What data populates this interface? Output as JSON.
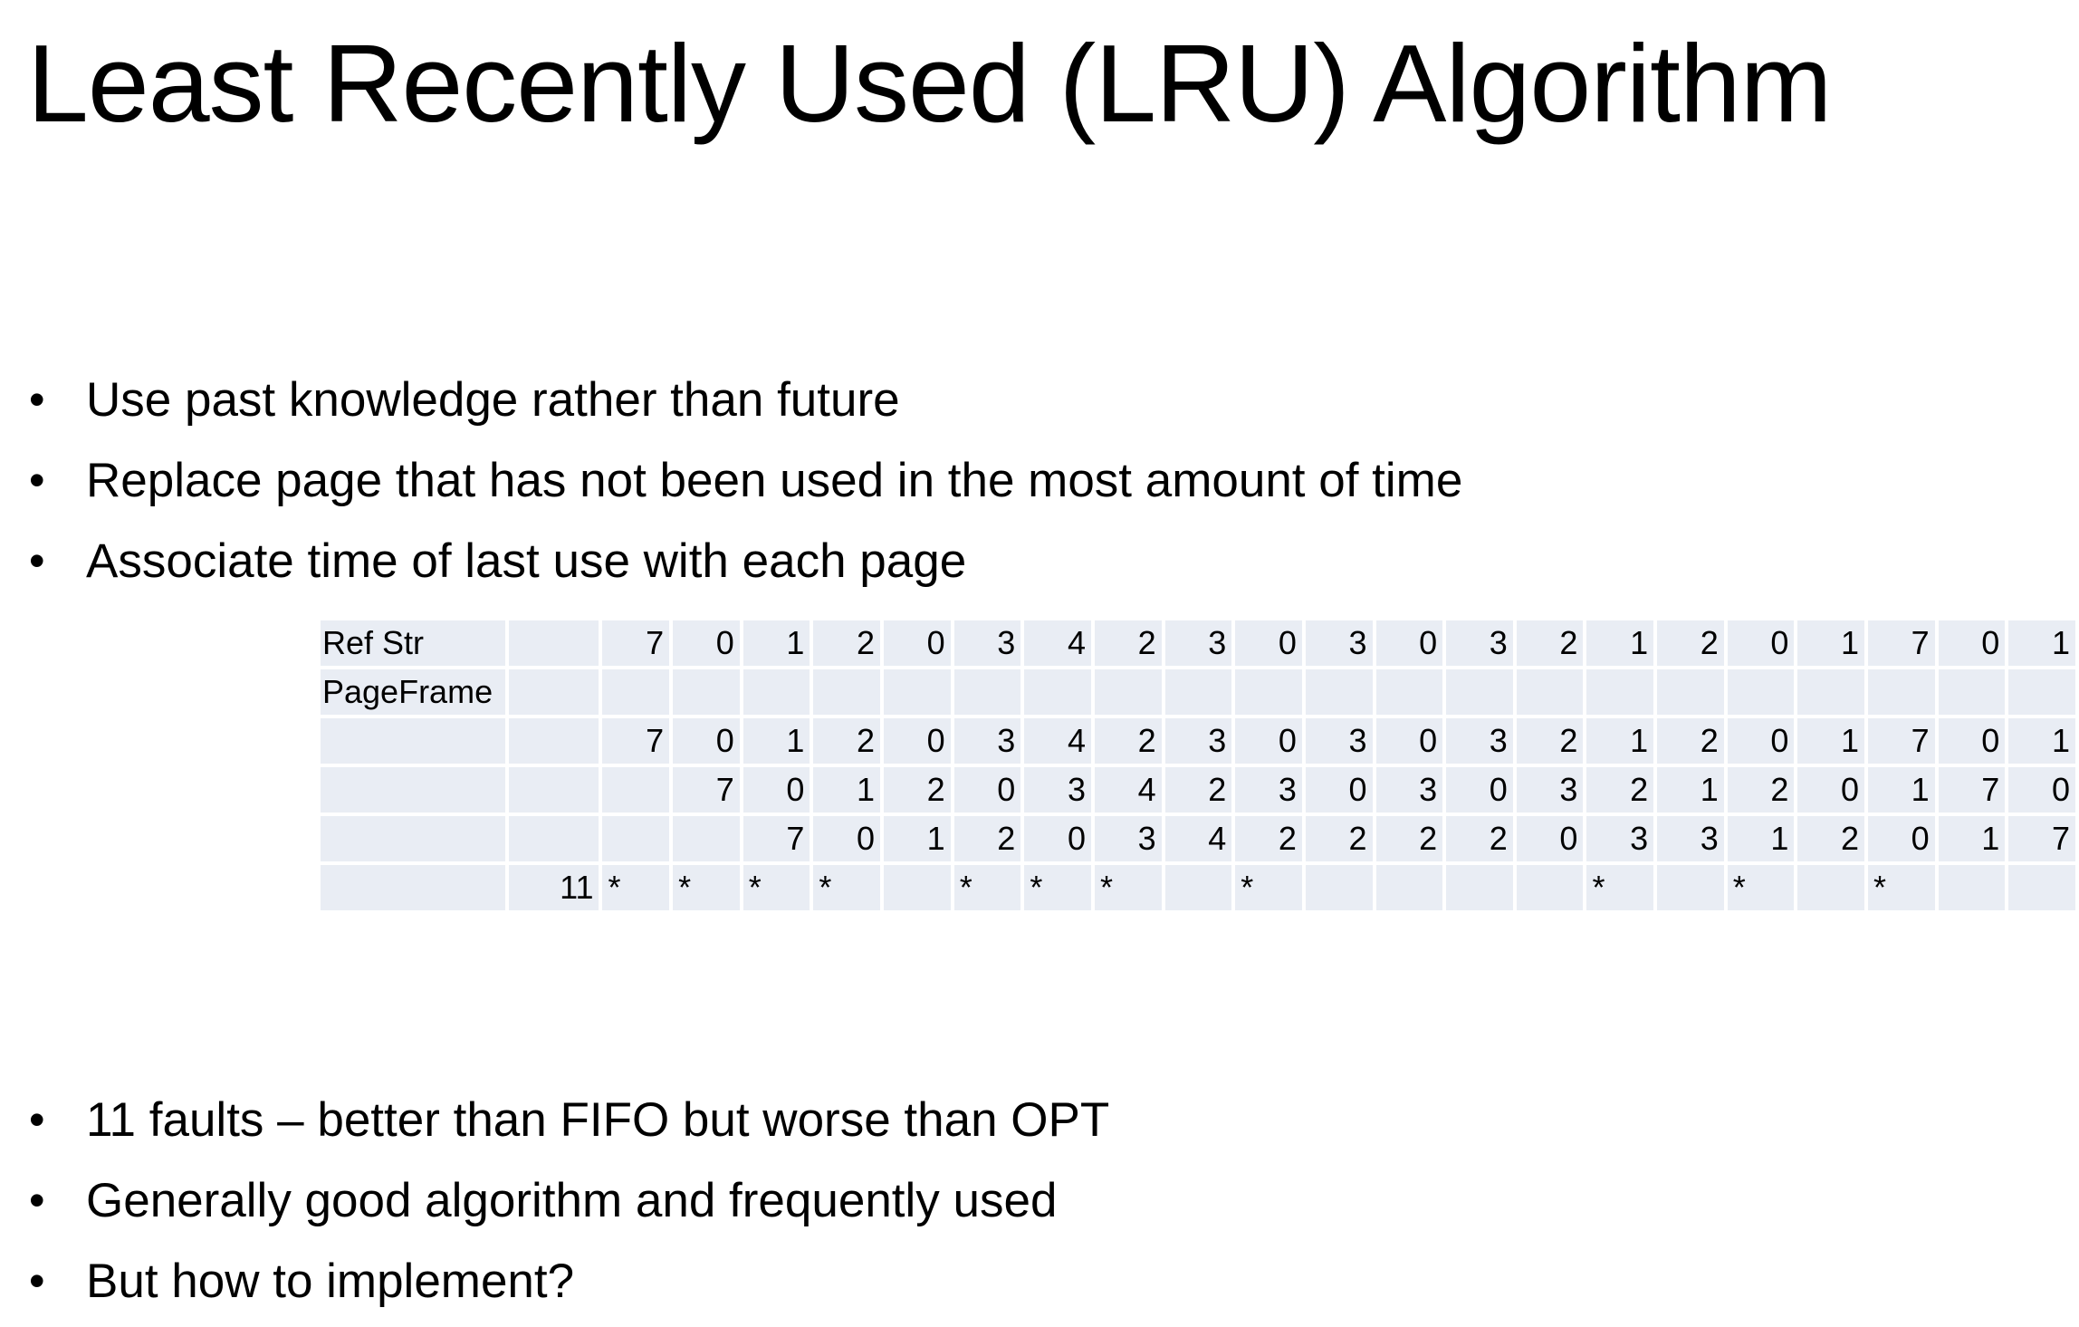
{
  "header": {
    "title": "Least Recently Used (LRU) Algorithm"
  },
  "bullets_top": [
    "Use past knowledge rather than future",
    "Replace page that has not been used in the most amount of time",
    "Associate time of last use with each page"
  ],
  "table": {
    "rows": [
      [
        "Ref Str",
        null,
        7,
        0,
        1,
        2,
        0,
        3,
        4,
        2,
        3,
        0,
        3,
        0,
        3,
        2,
        1,
        2,
        0,
        1,
        7,
        0,
        1
      ],
      [
        "PageFrame",
        null,
        null,
        null,
        null,
        null,
        null,
        null,
        null,
        null,
        null,
        null,
        null,
        null,
        null,
        null,
        null,
        null,
        null,
        null,
        null,
        null,
        null
      ],
      [
        null,
        null,
        7,
        0,
        1,
        2,
        0,
        3,
        4,
        2,
        3,
        0,
        3,
        0,
        3,
        2,
        1,
        2,
        0,
        1,
        7,
        0,
        1
      ],
      [
        null,
        null,
        null,
        7,
        0,
        1,
        2,
        0,
        3,
        4,
        2,
        3,
        0,
        3,
        0,
        3,
        2,
        1,
        2,
        0,
        1,
        7,
        0
      ],
      [
        null,
        null,
        null,
        null,
        7,
        0,
        1,
        2,
        0,
        3,
        4,
        2,
        2,
        2,
        2,
        0,
        3,
        3,
        1,
        2,
        0,
        1,
        7
      ],
      [
        null,
        11,
        "*",
        "*",
        "*",
        "*",
        null,
        "*",
        "*",
        "*",
        null,
        "*",
        null,
        null,
        null,
        null,
        "*",
        null,
        "*",
        null,
        "*",
        null,
        null
      ]
    ]
  },
  "bullets_bottom": [
    "11 faults – better than FIFO but worse than OPT",
    "Generally good algorithm and frequently used",
    "But how to implement?"
  ]
}
